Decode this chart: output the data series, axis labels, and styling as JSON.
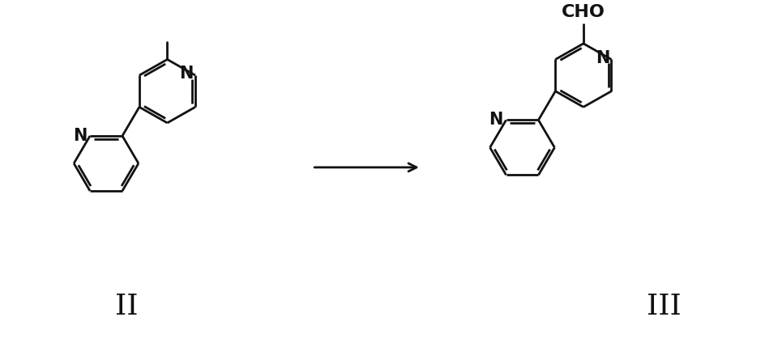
{
  "bg_color": "#ffffff",
  "line_color": "#111111",
  "line_width": 2.0,
  "label_II": "II",
  "label_III": "III",
  "label_CHO": "CHO",
  "label_N": "N",
  "font_size_label": 26,
  "font_size_atom": 15,
  "fig_width": 9.45,
  "fig_height": 4.34,
  "dpi": 100
}
